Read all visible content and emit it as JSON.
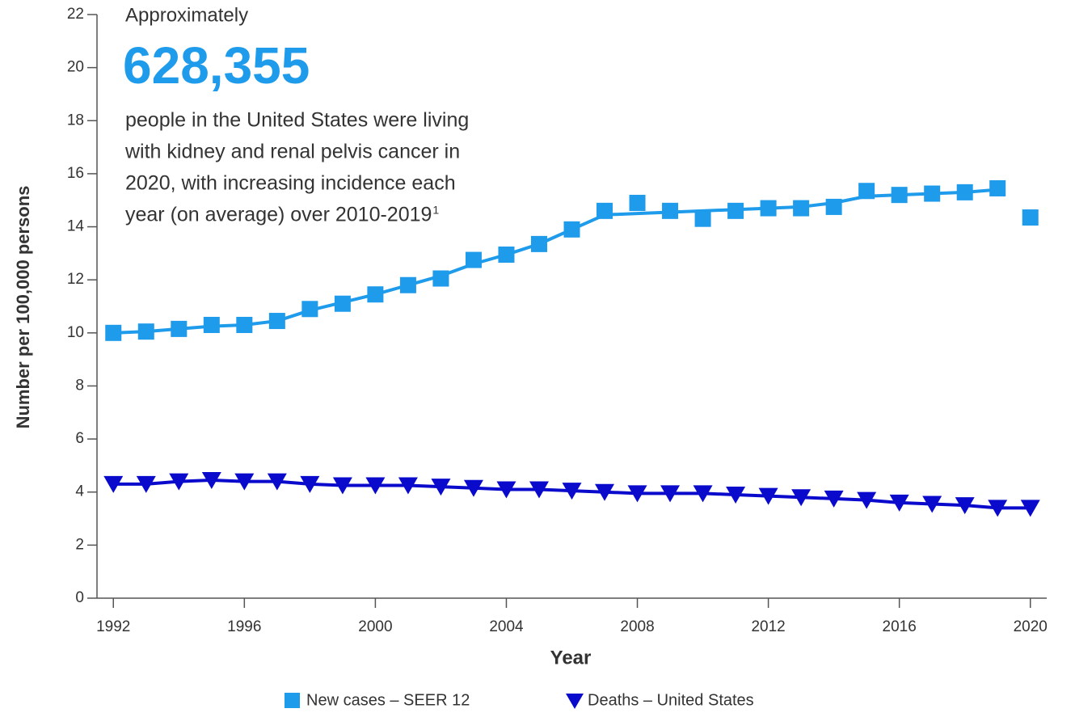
{
  "chart_data": {
    "type": "line",
    "y_label": "Number per 100,000 persons",
    "x_label": "Year",
    "annotation": {
      "intro": "Approximately",
      "number": "628,355",
      "lines": [
        "people in the United States were living",
        "with kidney and renal pelvis cancer in",
        "2020, with increasing incidence each",
        "year (on average) over 2010-2019"
      ],
      "footnote_marker": "1"
    },
    "x": [
      1992,
      1993,
      1994,
      1995,
      1996,
      1997,
      1998,
      1999,
      2000,
      2001,
      2002,
      2003,
      2004,
      2005,
      2006,
      2007,
      2008,
      2009,
      2010,
      2011,
      2012,
      2013,
      2014,
      2015,
      2016,
      2017,
      2018,
      2019,
      2020
    ],
    "xlim": [
      1991.5,
      2020.5
    ],
    "xticks": [
      1992,
      1996,
      2000,
      2004,
      2008,
      2012,
      2016,
      2020
    ],
    "ylim": [
      0,
      22
    ],
    "yticks": [
      0,
      2,
      4,
      6,
      8,
      10,
      12,
      14,
      16,
      18,
      20,
      22
    ],
    "series": [
      {
        "name": "New cases – SEER 12",
        "color": "#1e9beb",
        "marker": "square",
        "values": [
          10.0,
          10.05,
          10.15,
          10.3,
          10.3,
          10.45,
          10.9,
          11.1,
          11.45,
          11.8,
          12.05,
          12.75,
          12.95,
          13.35,
          13.9,
          14.6,
          14.9,
          14.6,
          14.3,
          14.6,
          14.7,
          14.7,
          14.75,
          15.35,
          15.2,
          15.25,
          15.3,
          15.45,
          14.35
        ],
        "trend": [
          10.0,
          10.05,
          10.15,
          10.25,
          10.3,
          10.45,
          10.85,
          11.15,
          11.45,
          11.8,
          12.15,
          12.6,
          12.95,
          13.35,
          13.9,
          14.45,
          14.5,
          14.55,
          14.6,
          14.65,
          14.7,
          14.75,
          14.9,
          15.15,
          15.2,
          15.25,
          15.3,
          15.4,
          null
        ]
      },
      {
        "name": "Deaths – United States",
        "color": "#0a0acc",
        "marker": "triangle-down",
        "values": [
          4.3,
          4.3,
          4.4,
          4.45,
          4.4,
          4.4,
          4.3,
          4.25,
          4.25,
          4.25,
          4.2,
          4.15,
          4.1,
          4.1,
          4.05,
          4.0,
          3.95,
          3.95,
          3.95,
          3.9,
          3.85,
          3.8,
          3.75,
          3.7,
          3.6,
          3.55,
          3.5,
          3.4,
          3.4
        ]
      }
    ]
  }
}
